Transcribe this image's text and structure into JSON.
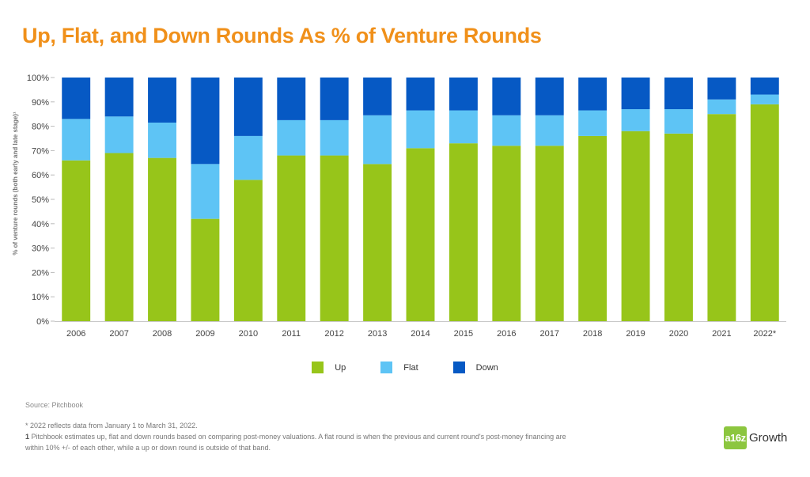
{
  "title": "Up, Flat, and Down Rounds As % of Venture Rounds",
  "legend": [
    {
      "label": "Up",
      "color": "#97c51a"
    },
    {
      "label": "Flat",
      "color": "#5ec4f5"
    },
    {
      "label": "Down",
      "color": "#0659c4"
    }
  ],
  "source": "Source: Pitchbook",
  "footnotes": {
    "asterisk": "* 2022 reflects data from January 1 to March 31, 2022.",
    "one_mark": "1",
    "one_text": " Pitchbook estimates up, flat and down rounds based on comparing post-money valuations. A flat round is when the previous and current round's post-money financing are within 10% +/- of each other, while a up or down round is outside of that band."
  },
  "logo": {
    "badge": "a16z",
    "text": "Growth"
  },
  "chart_data": {
    "type": "bar",
    "stacked": true,
    "title": "Up, Flat, and Down Rounds As % of Venture Rounds",
    "xlabel": "",
    "ylabel": "% of venture rounds (both early and late stage)¹",
    "ylim": [
      0,
      100
    ],
    "yticks": [
      "0%",
      "10%",
      "20%",
      "30%",
      "40%",
      "50%",
      "60%",
      "70%",
      "80%",
      "90%",
      "100%"
    ],
    "categories": [
      "2006",
      "2007",
      "2008",
      "2009",
      "2010",
      "2011",
      "2012",
      "2013",
      "2014",
      "2015",
      "2016",
      "2017",
      "2018",
      "2019",
      "2020",
      "2021",
      "2022*"
    ],
    "series": [
      {
        "name": "Up",
        "color": "#97c51a",
        "values": [
          66,
          69,
          67,
          42,
          58,
          68,
          68,
          64.5,
          71,
          73,
          72,
          72,
          76,
          78,
          77,
          85,
          89
        ]
      },
      {
        "name": "Flat",
        "color": "#5ec4f5",
        "values": [
          17,
          15,
          14.5,
          22.5,
          18,
          14.5,
          14.5,
          20,
          15.5,
          13.5,
          12.5,
          12.5,
          10.5,
          9,
          10,
          6,
          4
        ]
      },
      {
        "name": "Down",
        "color": "#0659c4",
        "values": [
          17,
          16,
          18.5,
          35.5,
          24,
          17.5,
          17.5,
          15.5,
          13.5,
          13.5,
          15.5,
          15.5,
          13.5,
          13,
          13,
          9,
          7
        ]
      }
    ],
    "grid": false,
    "legend_position": "bottom"
  }
}
